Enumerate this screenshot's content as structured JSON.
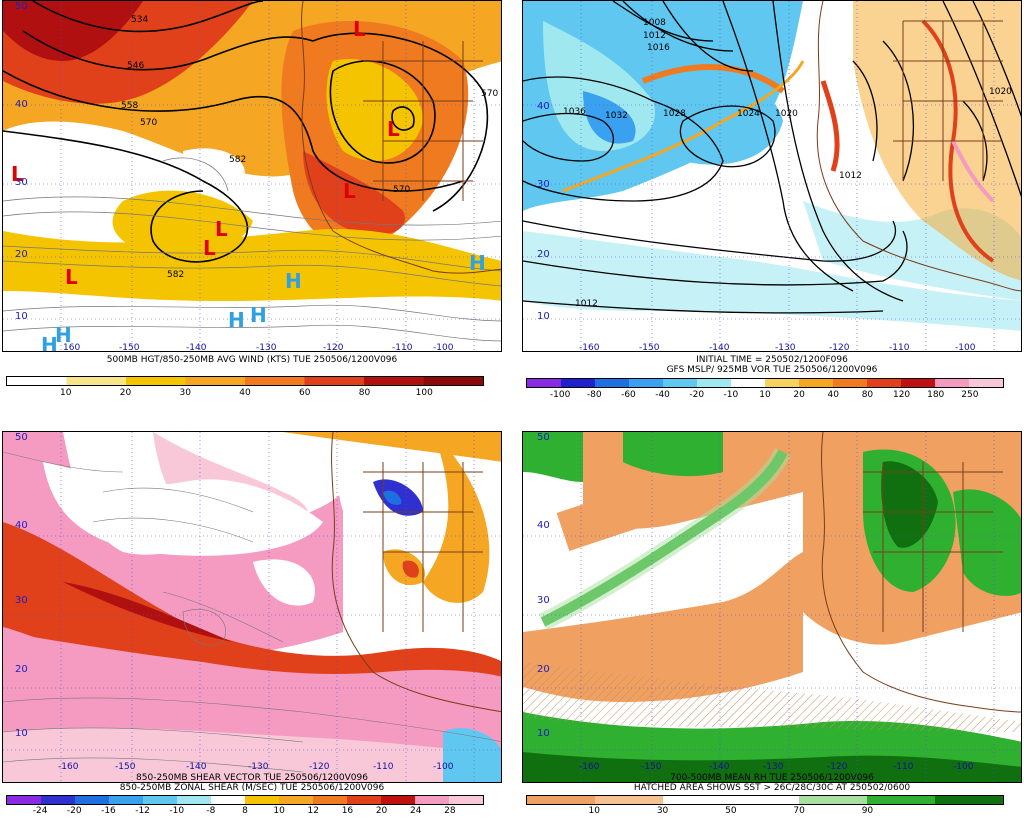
{
  "panels": [
    {
      "id": "p1",
      "caption_lines": [
        "500MB HGT/850-250MB AVG WIND (KTS) TUE 250506/1200V096"
      ],
      "colorbar": {
        "labels": [
          "10",
          "20",
          "30",
          "40",
          "60",
          "80",
          "100"
        ],
        "colors": [
          "#ffffff",
          "#f7e58a",
          "#f5c400",
          "#f5a623",
          "#f07a20",
          "#e0401a",
          "#b01010",
          "#8a0a0a"
        ]
      },
      "lat_labels": [
        "50",
        "40",
        "30",
        "20",
        "10"
      ],
      "lon_labels": [
        "-150",
        "-140",
        "-130",
        "-120",
        "-110",
        "-100"
      ],
      "lon_left_label": "160",
      "contour_labels": [
        "534",
        "546",
        "558",
        "570",
        "582",
        "582",
        "570",
        "570"
      ],
      "symbols": [
        {
          "t": "L",
          "cls": "L"
        },
        {
          "t": "L",
          "cls": "L"
        },
        {
          "t": "L",
          "cls": "L"
        },
        {
          "t": "L",
          "cls": "L"
        },
        {
          "t": "L",
          "cls": "L"
        },
        {
          "t": "L",
          "cls": "L"
        },
        {
          "t": "L",
          "cls": "L"
        },
        {
          "t": "H",
          "cls": "H"
        },
        {
          "t": "H",
          "cls": "H"
        },
        {
          "t": "H",
          "cls": "H"
        },
        {
          "t": "H",
          "cls": "H"
        },
        {
          "t": "H",
          "cls": "H"
        },
        {
          "t": "H",
          "cls": "H"
        }
      ]
    },
    {
      "id": "p2",
      "caption_lines": [
        "INITIAL TIME = 250502/1200F096",
        "GFS MSLP/ 925MB VOR TUE 250506/1200V096"
      ],
      "colorbar": {
        "labels": [
          "-100",
          "-80",
          "-60",
          "-40",
          "-20",
          "-10",
          "10",
          "20",
          "40",
          "80",
          "120",
          "180",
          "250"
        ],
        "colors": [
          "#8a2be2",
          "#2020d0",
          "#1e6fe0",
          "#3aa0f0",
          "#60c8f0",
          "#a0e8f0",
          "#ffffff",
          "#f7d060",
          "#f5a623",
          "#f07a20",
          "#e0401a",
          "#c01010",
          "#f59ac0",
          "#f8c8d8"
        ]
      },
      "lat_labels": [
        "40",
        "30",
        "20",
        "10"
      ],
      "lon_labels": [
        "-160",
        "-150",
        "-140",
        "-130",
        "-120",
        "-110",
        "-100"
      ],
      "contour_labels": [
        "1008",
        "1012",
        "1016",
        "1036",
        "1032",
        "1028",
        "1024",
        "1020",
        "1012",
        "1012",
        "1020"
      ]
    },
    {
      "id": "p3",
      "caption_lines": [
        "850-250MB SHEAR VECTOR TUE 250506/1200V096",
        "850-250MB ZONAL SHEAR (M/SEC) TUE 250506/1200V096"
      ],
      "colorbar": {
        "labels": [
          "-24",
          "-20",
          "-16",
          "-12",
          "-10",
          "-8",
          "8",
          "10",
          "12",
          "16",
          "20",
          "24",
          "28"
        ],
        "colors": [
          "#8a2be2",
          "#3030d0",
          "#1e6fe0",
          "#3aa0f0",
          "#60c8f0",
          "#a0e8f0",
          "#ffffff",
          "#f5c400",
          "#f5a623",
          "#f07a20",
          "#e0401a",
          "#c01010",
          "#f59ac0",
          "#f8c8d8"
        ]
      },
      "lat_labels": [
        "50",
        "40",
        "30",
        "20",
        "10"
      ],
      "lon_labels": [
        "-150",
        "-140",
        "-130",
        "-120",
        "-110",
        "-100"
      ],
      "lon_left_label": "-160"
    },
    {
      "id": "p4",
      "caption_lines": [
        "700-500MB MEAN RH TUE 250506/1200V096",
        "HATCHED AREA SHOWS SST > 26C/28C/30C AT 250502/0600"
      ],
      "colorbar": {
        "labels": [
          "10",
          "30",
          "50",
          "70",
          "90"
        ],
        "colors": [
          "#f0a060",
          "#f7c090",
          "#ffffff",
          "#ffffff",
          "#a8e0a0",
          "#30b030",
          "#107010"
        ]
      },
      "lat_labels": [
        "50",
        "40",
        "30",
        "20",
        "10"
      ],
      "lon_labels": [
        "-160",
        "-150",
        "-140",
        "-130",
        "-120",
        "-110",
        "-100"
      ]
    }
  ]
}
